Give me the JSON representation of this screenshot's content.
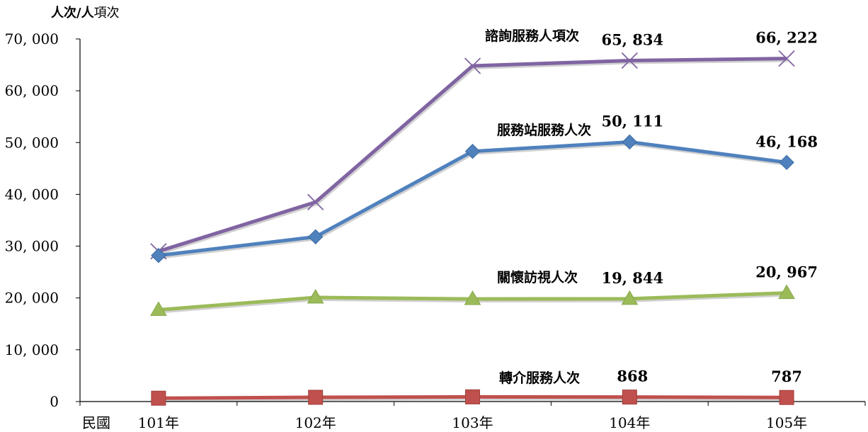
{
  "chart_data": {
    "type": "line",
    "unit_label_bold": "人次/人",
    "unit_label_rest": "項次",
    "x_prefix_label": "民國",
    "categories": [
      "101年",
      "102年",
      "103年",
      "104年",
      "105年"
    ],
    "ylim": [
      0,
      70000
    ],
    "yticks": [
      0,
      10000,
      20000,
      30000,
      40000,
      50000,
      60000,
      70000
    ],
    "ytick_labels": [
      "0",
      "10, 000",
      "20, 000",
      "30, 000",
      "40, 000",
      "50, 000",
      "60, 000",
      "70, 000"
    ],
    "grid": false,
    "series": [
      {
        "name": "諮詢服務人項次",
        "color": "#8064a2",
        "marker": "x",
        "values": [
          29000,
          38500,
          64800,
          65834,
          66222
        ],
        "labels": [
          "",
          "",
          "",
          "65, 834",
          "66, 222"
        ]
      },
      {
        "name": "服務站服務人次",
        "color": "#4f81bd",
        "marker": "diamond",
        "values": [
          28200,
          31800,
          48300,
          50111,
          46168
        ],
        "labels": [
          "",
          "",
          "",
          "50, 111",
          "46, 168"
        ]
      },
      {
        "name": "關懷訪視人次",
        "color": "#9bbb59",
        "marker": "triangle",
        "values": [
          17700,
          20100,
          19800,
          19844,
          20967
        ],
        "labels": [
          "",
          "",
          "",
          "19, 844",
          "20, 967"
        ]
      },
      {
        "name": "轉介服務人次",
        "color": "#c0504d",
        "marker": "square",
        "values": [
          650,
          820,
          900,
          868,
          787
        ],
        "labels": [
          "",
          "",
          "",
          "868",
          "787"
        ]
      }
    ]
  }
}
